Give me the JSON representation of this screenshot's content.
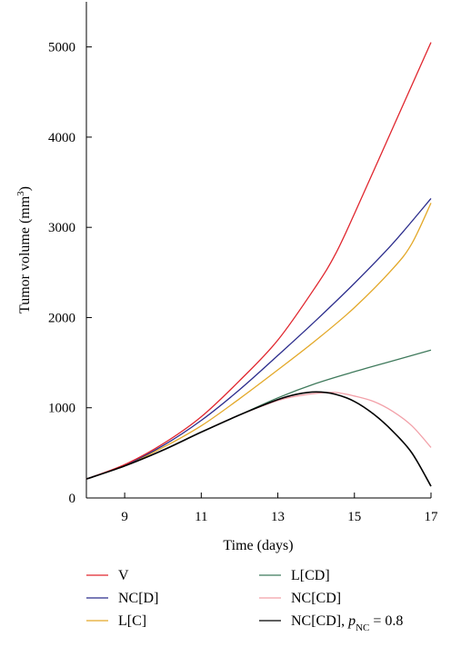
{
  "chart_data": {
    "type": "line",
    "title": "",
    "xlabel": "Time (days)",
    "ylabel_main": "Tumor volume (mm",
    "ylabel_sup": "3",
    "ylabel_close": ")",
    "xlim": [
      8,
      17
    ],
    "ylim": [
      0,
      5500
    ],
    "xticks": [
      9,
      11,
      13,
      15,
      17
    ],
    "yticks": [
      0,
      1000,
      2000,
      3000,
      4000,
      5000
    ],
    "grid": false,
    "legend_position": "bottom",
    "series": [
      {
        "name": "V",
        "color": "#e0262e",
        "x": [
          8,
          9,
          10,
          11,
          12,
          13,
          14,
          14.5,
          15,
          16,
          17
        ],
        "y": [
          210,
          370,
          600,
          900,
          1300,
          1750,
          2350,
          2700,
          3150,
          4100,
          5050
        ]
      },
      {
        "name": "NC[D]",
        "color": "#2b2c8c",
        "x": [
          8,
          9,
          10,
          11,
          12,
          13,
          14,
          15,
          16,
          17
        ],
        "y": [
          210,
          365,
          580,
          860,
          1200,
          1580,
          1970,
          2380,
          2820,
          3320
        ]
      },
      {
        "name": "L[C]",
        "color": "#e3a828",
        "x": [
          8,
          9,
          10,
          11,
          12,
          13,
          14,
          15,
          16,
          16.5,
          17
        ],
        "y": [
          210,
          360,
          560,
          800,
          1100,
          1420,
          1750,
          2110,
          2540,
          2820,
          3270
        ]
      },
      {
        "name": "L[CD]",
        "color": "#3f7a5c",
        "x": [
          8,
          9,
          10,
          11,
          12,
          13,
          14,
          15,
          16,
          17
        ],
        "y": [
          210,
          355,
          530,
          730,
          920,
          1110,
          1270,
          1400,
          1520,
          1640
        ]
      },
      {
        "name": "NC[CD]",
        "color": "#f2a0a8",
        "x": [
          8,
          9,
          10,
          11,
          12,
          13,
          13.5,
          14,
          14.5,
          15,
          15.5,
          16,
          16.5,
          17
        ],
        "y": [
          210,
          355,
          530,
          730,
          920,
          1080,
          1130,
          1160,
          1170,
          1130,
          1070,
          960,
          800,
          560
        ]
      },
      {
        "name": "NC[CD], ",
        "name_extra_italic": "p",
        "name_extra_sub": "NC",
        "name_extra_tail": " = 0.8",
        "color": "#000000",
        "x": [
          8,
          9,
          10,
          11,
          12,
          13,
          13.5,
          14,
          14.5,
          15,
          15.5,
          16,
          16.5,
          17
        ],
        "y": [
          210,
          355,
          530,
          730,
          920,
          1090,
          1150,
          1175,
          1150,
          1070,
          930,
          740,
          500,
          130
        ]
      }
    ]
  }
}
